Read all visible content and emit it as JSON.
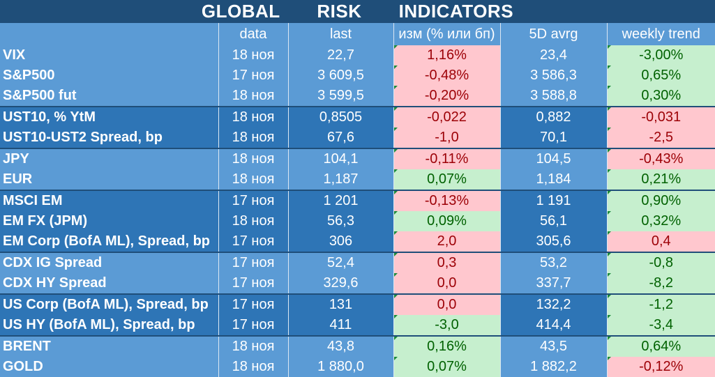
{
  "title": "GLOBAL   RISK   INDICATORS",
  "columns": [
    "",
    "data",
    "last",
    "изм (% или бп)",
    "5D avrg",
    "weekly trend"
  ],
  "colors": {
    "header": "#1f4e79",
    "light_row": "#5b9bd5",
    "dark_row": "#2e75b6",
    "positive_bg": "#c6efce",
    "positive_text": "#006100",
    "negative_bg": "#ffc7ce",
    "negative_text": "#9c0006"
  },
  "rows": [
    {
      "name": "VIX",
      "date": "18 ноя",
      "last": "22,7",
      "change": "1,16%",
      "avg5d": "23,4",
      "trend": "-3,00%",
      "change_state": "neg",
      "trend_state": "pos",
      "band": "light",
      "group_start": false
    },
    {
      "name": "S&P500",
      "date": "17 ноя",
      "last": "3 609,5",
      "change": "-0,48%",
      "avg5d": "3 586,3",
      "trend": "0,65%",
      "change_state": "neg",
      "trend_state": "pos",
      "band": "light",
      "group_start": false
    },
    {
      "name": "S&P500 fut",
      "date": "18 ноя",
      "last": "3 599,5",
      "change": "-0,20%",
      "avg5d": "3 588,8",
      "trend": "0,30%",
      "change_state": "neg",
      "trend_state": "pos",
      "band": "light",
      "group_start": false
    },
    {
      "name": "UST10, % YtM",
      "date": "18 ноя",
      "last": "0,8505",
      "change": "-0,022",
      "avg5d": "0,882",
      "trend": "-0,031",
      "change_state": "neg",
      "trend_state": "neg",
      "band": "dark",
      "group_start": true
    },
    {
      "name": "UST10-UST2 Spread, bp",
      "date": "18 ноя",
      "last": "67,6",
      "change": "-1,0",
      "avg5d": "70,1",
      "trend": "-2,5",
      "change_state": "neg",
      "trend_state": "neg",
      "band": "dark",
      "group_start": false
    },
    {
      "name": "JPY",
      "date": "18 ноя",
      "last": "104,1",
      "change": "-0,11%",
      "avg5d": "104,5",
      "trend": "-0,43%",
      "change_state": "neg",
      "trend_state": "neg",
      "band": "light",
      "group_start": true
    },
    {
      "name": "EUR",
      "date": "18 ноя",
      "last": "1,187",
      "change": "0,07%",
      "avg5d": "1,184",
      "trend": "0,21%",
      "change_state": "pos",
      "trend_state": "pos",
      "band": "light",
      "group_start": false
    },
    {
      "name": "MSCI EM",
      "date": "17 ноя",
      "last": "1 201",
      "change": "-0,13%",
      "avg5d": "1 191",
      "trend": "0,90%",
      "change_state": "neg",
      "trend_state": "pos",
      "band": "dark",
      "group_start": true
    },
    {
      "name": "EM FX (JPM)",
      "date": "18 ноя",
      "last": "56,3",
      "change": "0,09%",
      "avg5d": "56,1",
      "trend": "0,32%",
      "change_state": "pos",
      "trend_state": "pos",
      "band": "dark",
      "group_start": false
    },
    {
      "name": "EM Corp (BofA ML), Spread, bp",
      "date": "17 ноя",
      "last": "306",
      "change": "2,0",
      "avg5d": "305,6",
      "trend": "0,4",
      "change_state": "neg",
      "trend_state": "neg",
      "band": "dark",
      "group_start": false
    },
    {
      "name": "CDX IG Spread",
      "date": "17 ноя",
      "last": "52,4",
      "change": "0,3",
      "avg5d": "53,2",
      "trend": "-0,8",
      "change_state": "neg",
      "trend_state": "pos",
      "band": "light",
      "group_start": true
    },
    {
      "name": "CDX HY Spread",
      "date": "17 ноя",
      "last": "329,6",
      "change": "0,0",
      "avg5d": "337,7",
      "trend": "-8,2",
      "change_state": "neg",
      "trend_state": "pos",
      "band": "light",
      "group_start": false
    },
    {
      "name": "US Corp (BofA ML), Spread, bp",
      "date": "17 ноя",
      "last": "131",
      "change": "0,0",
      "avg5d": "132,2",
      "trend": "-1,2",
      "change_state": "neg",
      "trend_state": "pos",
      "band": "dark",
      "group_start": true
    },
    {
      "name": "US HY (BofA ML), Spread, bp",
      "date": "17 ноя",
      "last": "411",
      "change": "-3,0",
      "avg5d": "414,4",
      "trend": "-3,4",
      "change_state": "pos",
      "trend_state": "pos",
      "band": "dark",
      "group_start": false
    },
    {
      "name": "BRENT",
      "date": "18 ноя",
      "last": "43,8",
      "change": "0,16%",
      "avg5d": "43,5",
      "trend": "0,64%",
      "change_state": "pos",
      "trend_state": "pos",
      "band": "light",
      "group_start": true
    },
    {
      "name": "GOLD",
      "date": "18 ноя",
      "last": "1 880,0",
      "change": "0,07%",
      "avg5d": "1 882,2",
      "trend": "-0,12%",
      "change_state": "pos",
      "trend_state": "neg",
      "band": "light",
      "group_start": false
    }
  ]
}
